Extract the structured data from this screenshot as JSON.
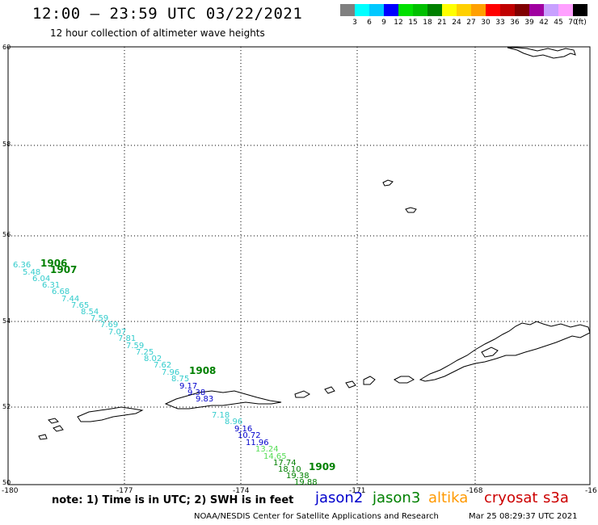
{
  "header": {
    "title": "12:00 — 23:59 UTC 03/22/2021",
    "subtitle": "12 hour collection of altimeter wave heights"
  },
  "legend": {
    "unit": "(ft)",
    "colors": [
      "#808080",
      "#00ffff",
      "#00c8ff",
      "#0000ff",
      "#00e000",
      "#00c000",
      "#008000",
      "#ffff00",
      "#ffd000",
      "#ffa000",
      "#ff0000",
      "#c00000",
      "#800000",
      "#a000a0",
      "#c8a0ff",
      "#ffa0ff",
      "#000000"
    ],
    "labels": [
      "3",
      "6",
      "9",
      "12",
      "15",
      "18",
      "21",
      "24",
      "27",
      "30",
      "33",
      "36",
      "39",
      "42",
      "45",
      "70"
    ]
  },
  "axes": {
    "lon_labels": [
      "-180",
      "-177",
      "-174",
      "-171",
      "-168",
      "-16"
    ],
    "lat_labels": [
      "60",
      "58",
      "56",
      "54",
      "52",
      "50"
    ]
  },
  "track": {
    "wave_heights": [
      {
        "v": "6.36",
        "c": "#33cccc"
      },
      {
        "v": "5.48",
        "c": "#33cccc"
      },
      {
        "v": "6.04",
        "c": "#33cccc"
      },
      {
        "v": "6.31",
        "c": "#33cccc"
      },
      {
        "v": "6.68",
        "c": "#33cccc"
      },
      {
        "v": "7.44",
        "c": "#33cccc"
      },
      {
        "v": "7.65",
        "c": "#33cccc"
      },
      {
        "v": "8.54",
        "c": "#33cccc"
      },
      {
        "v": "7.59",
        "c": "#33cccc"
      },
      {
        "v": "7.69",
        "c": "#33cccc"
      },
      {
        "v": "7.07",
        "c": "#33cccc"
      },
      {
        "v": "7.81",
        "c": "#33cccc"
      },
      {
        "v": "7.59",
        "c": "#33cccc"
      },
      {
        "v": "7.25",
        "c": "#33cccc"
      },
      {
        "v": "8.02",
        "c": "#33cccc"
      },
      {
        "v": "7.62",
        "c": "#33cccc"
      },
      {
        "v": "7.96",
        "c": "#33cccc"
      },
      {
        "v": "8.75",
        "c": "#33cccc"
      },
      {
        "v": "9.17",
        "c": "#0000cc"
      },
      {
        "v": "9.38",
        "c": "#0000cc"
      },
      {
        "v": "9.83",
        "c": "#0000cc"
      },
      {
        "v": "7.18",
        "c": "#33cccc"
      },
      {
        "v": "8.96",
        "c": "#33cccc"
      },
      {
        "v": "9.16",
        "c": "#0000cc"
      },
      {
        "v": "10.72",
        "c": "#0000cc"
      },
      {
        "v": "11.96",
        "c": "#0000cc"
      },
      {
        "v": "13.24",
        "c": "#55dd55"
      },
      {
        "v": "14.65",
        "c": "#55dd55"
      },
      {
        "v": "17.74",
        "c": "#008000"
      },
      {
        "v": "18.10",
        "c": "#008000"
      },
      {
        "v": "19.38",
        "c": "#008000"
      },
      {
        "v": "19.88",
        "c": "#008000"
      }
    ],
    "time_tags": [
      "1906",
      "1907",
      "1908",
      "1909"
    ]
  },
  "footer": {
    "note": "note: 1) Time is in UTC; 2) SWH is in feet",
    "satellites": [
      {
        "name": "jason2",
        "color": "#0000cc"
      },
      {
        "name": "jason3",
        "color": "#008000"
      },
      {
        "name": "altika",
        "color": "#ff9900"
      },
      {
        "name": "cryosat",
        "color": "#cc0000"
      },
      {
        "name": "s3a",
        "color": "#cc0000"
      }
    ],
    "credit": "NOAA/NESDIS Center for Satellite Applications and Research",
    "timestamp": "Mar 25 08:29:37 UTC 2021"
  }
}
